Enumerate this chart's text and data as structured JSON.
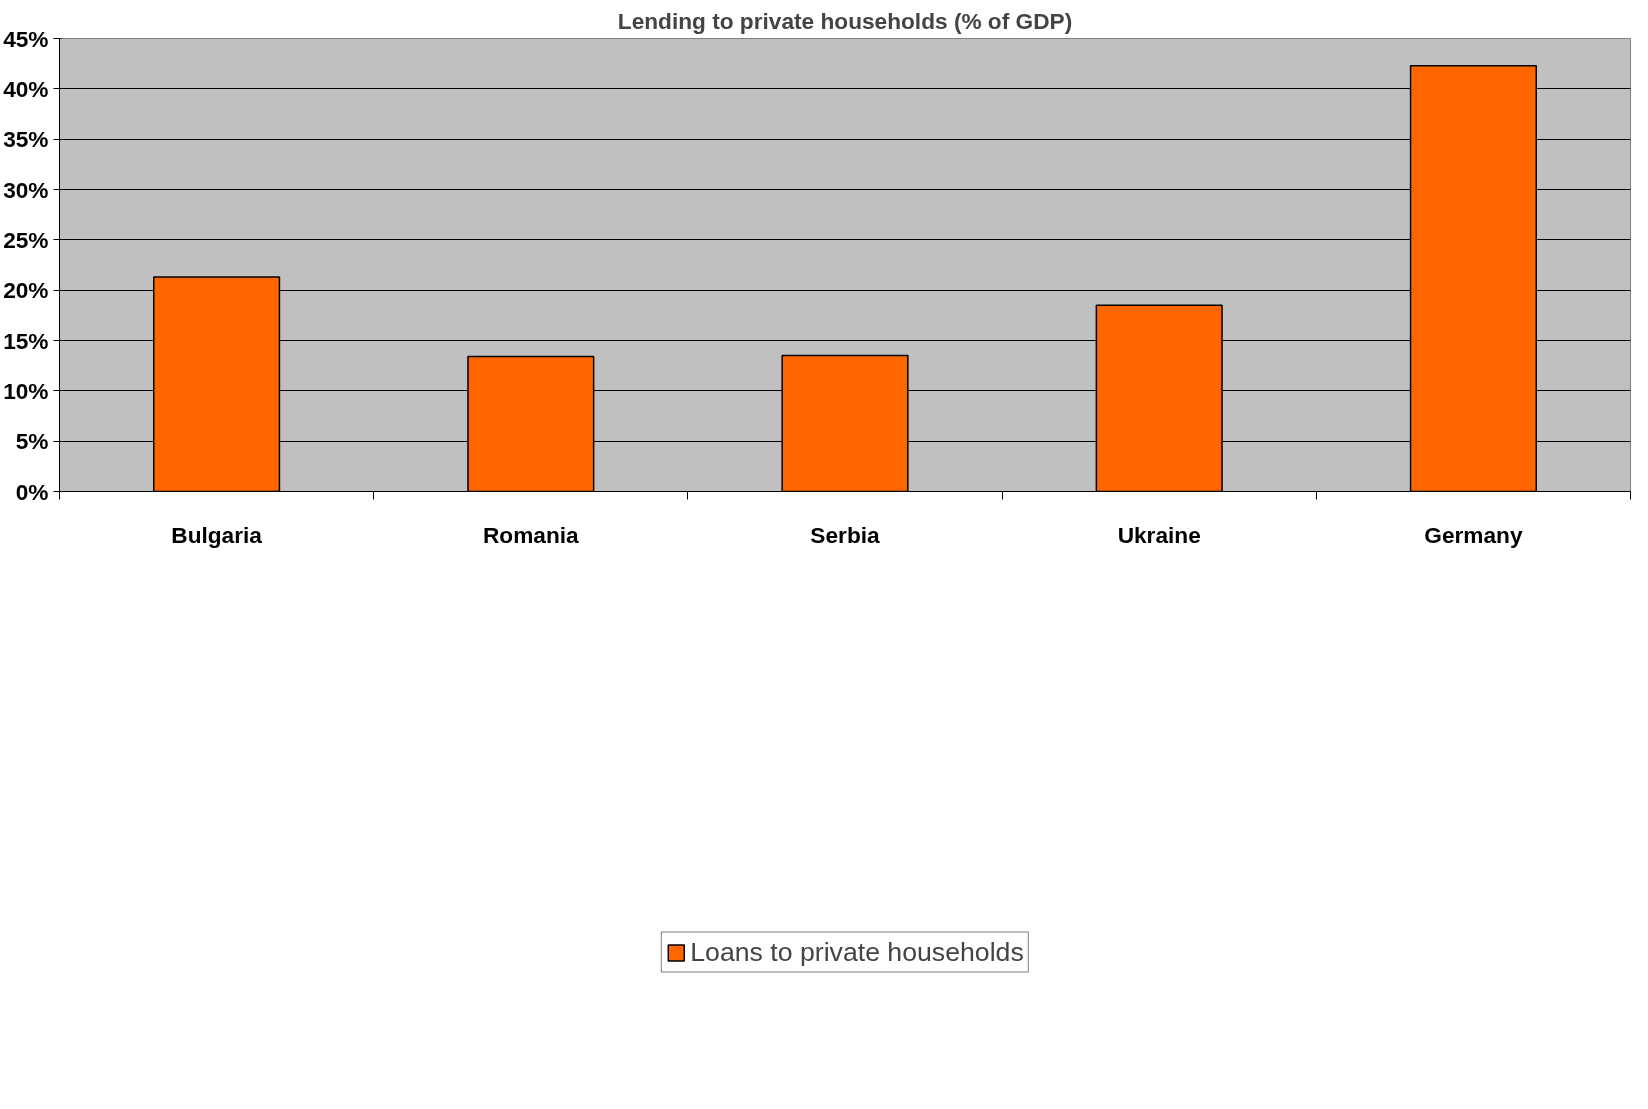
{
  "chart_data": {
    "type": "bar",
    "title": "Lending to private households (% of GDP)",
    "categories": [
      "Bulgaria",
      "Romania",
      "Serbia",
      "Ukraine",
      "Germany"
    ],
    "series": [
      {
        "name": "Loans to private households",
        "color": "#ff6600",
        "values": [
          21.3,
          13.4,
          13.5,
          18.5,
          42.3
        ]
      }
    ],
    "ylim": [
      0,
      45
    ],
    "yticks": [
      {
        "value": 0,
        "label": "0%"
      },
      {
        "value": 5,
        "label": "5%"
      },
      {
        "value": 10,
        "label": "10%"
      },
      {
        "value": 15,
        "label": "15%"
      },
      {
        "value": 20,
        "label": "20%"
      },
      {
        "value": 25,
        "label": "25%"
      },
      {
        "value": 30,
        "label": "30%"
      },
      {
        "value": 35,
        "label": "35%"
      },
      {
        "value": 40,
        "label": "40%"
      },
      {
        "value": 45,
        "label": "45%"
      }
    ],
    "grid": "y",
    "legend": "bottom"
  }
}
